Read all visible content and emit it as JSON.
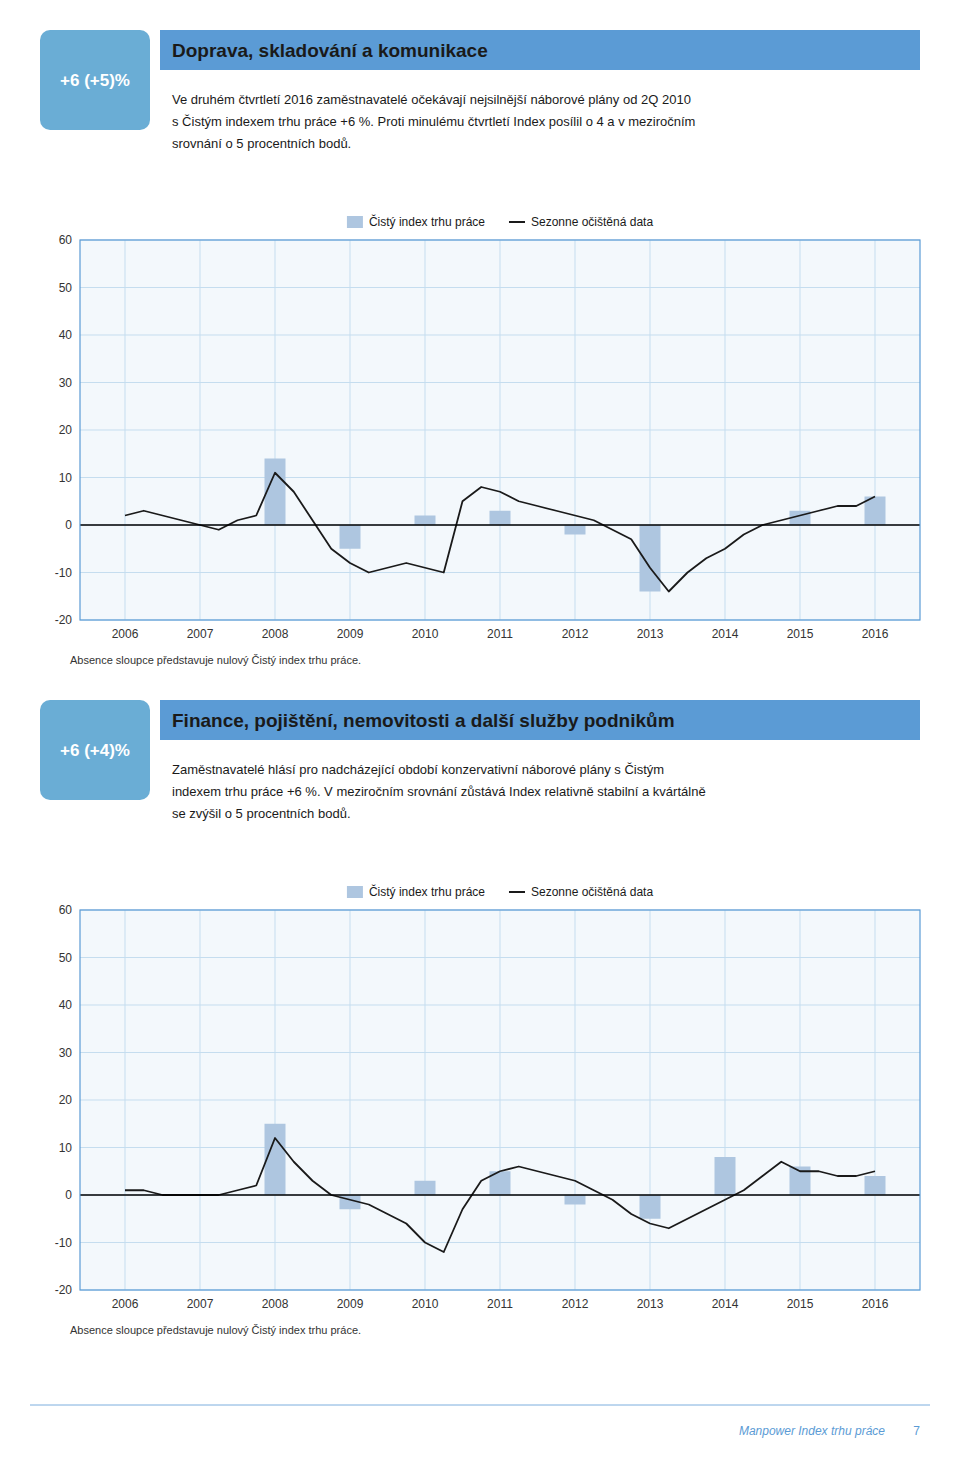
{
  "chart_data": [
    {
      "type": "bar",
      "title": "Doprava, skladování a komunikace",
      "annotations": [
        "+6 (+5)%",
        "Ve druhém čtvrtletí 2016 zaměstnavatelé očekávají nejsilnější náborové plány od 2Q 2010",
        "s Čistým indexem trhu práce +6 %. Proti minulému čtvrtletí Index posílil o 4 a v meziročním",
        "srovnání o 5 procentních bodů.",
        "Absence sloupce představuje nulový Čistý index trhu práce."
      ],
      "x": [
        2006,
        2007,
        2008,
        2009,
        2010,
        2011,
        2012,
        2013,
        2014,
        2015,
        2016
      ],
      "series": [
        {
          "name": "Čistý index trhu práce",
          "type": "bar",
          "color": "#aec6e0",
          "values": [
            null,
            null,
            14,
            -5,
            2,
            3,
            -2,
            -14,
            null,
            3,
            6
          ]
        },
        {
          "name": "Sezonne očištěná data",
          "type": "line",
          "color": "#1a1a1a",
          "x": [
            2006.0,
            2006.25,
            2006.5,
            2006.75,
            2007.0,
            2007.25,
            2007.5,
            2007.75,
            2008.0,
            2008.25,
            2008.5,
            2008.75,
            2009.0,
            2009.25,
            2009.5,
            2009.75,
            2010.0,
            2010.25,
            2010.5,
            2010.75,
            2011.0,
            2011.25,
            2011.5,
            2011.75,
            2012.0,
            2012.25,
            2012.5,
            2012.75,
            2013.0,
            2013.25,
            2013.5,
            2013.75,
            2014.0,
            2014.25,
            2014.5,
            2014.75,
            2015.0,
            2015.25,
            2015.5,
            2015.75,
            2016.0
          ],
          "values": [
            2,
            3,
            2,
            1,
            0,
            -1,
            1,
            2,
            11,
            7,
            1,
            -5,
            -8,
            -10,
            -9,
            -8,
            -9,
            -10,
            5,
            8,
            7,
            5,
            4,
            3,
            2,
            1,
            -1,
            -3,
            -9,
            -14,
            -10,
            -7,
            -5,
            -2,
            0,
            1,
            2,
            3,
            4,
            4,
            6
          ]
        }
      ],
      "xlim": [
        2005.4,
        2016.6
      ],
      "xticks": [
        2006,
        2007,
        2008,
        2009,
        2010,
        2011,
        2012,
        2013,
        2014,
        2015,
        2016
      ],
      "ylim": [
        -20,
        60
      ],
      "yticks": [
        -20,
        -10,
        0,
        10,
        20,
        30,
        40,
        50,
        60
      ],
      "grid": true,
      "legend": "top"
    },
    {
      "type": "bar",
      "title": "Finance, pojištění, nemovitosti a další služby podnikům",
      "annotations": [
        "+6 (+4)%",
        "Zaměstnavatelé hlásí pro nadcházející období konzervativní náborové plány s Čistým",
        "indexem trhu práce +6 %. V meziročním srovnání zůstává Index relativně stabilní a kvártálně",
        "se zvýšil o 5 procentních bodů.",
        "Absence sloupce představuje nulový Čistý index trhu práce."
      ],
      "x": [
        2006,
        2007,
        2008,
        2009,
        2010,
        2011,
        2012,
        2013,
        2014,
        2015,
        2016
      ],
      "series": [
        {
          "name": "Čistý index trhu práce",
          "type": "bar",
          "color": "#aec6e0",
          "values": [
            null,
            null,
            15,
            -3,
            3,
            5,
            -2,
            -5,
            8,
            6,
            4
          ]
        },
        {
          "name": "Sezonne očištěná data",
          "type": "line",
          "color": "#1a1a1a",
          "x": [
            2006.0,
            2006.25,
            2006.5,
            2006.75,
            2007.0,
            2007.25,
            2007.5,
            2007.75,
            2008.0,
            2008.25,
            2008.5,
            2008.75,
            2009.0,
            2009.25,
            2009.5,
            2009.75,
            2010.0,
            2010.25,
            2010.5,
            2010.75,
            2011.0,
            2011.25,
            2011.5,
            2011.75,
            2012.0,
            2012.25,
            2012.5,
            2012.75,
            2013.0,
            2013.25,
            2013.5,
            2013.75,
            2014.0,
            2014.25,
            2014.5,
            2014.75,
            2015.0,
            2015.25,
            2015.5,
            2015.75,
            2016.0
          ],
          "values": [
            1,
            1,
            0,
            0,
            0,
            0,
            1,
            2,
            12,
            7,
            3,
            0,
            -1,
            -2,
            -4,
            -6,
            -10,
            -12,
            -3,
            3,
            5,
            6,
            5,
            4,
            3,
            1,
            -1,
            -4,
            -6,
            -7,
            -5,
            -3,
            -1,
            1,
            4,
            7,
            5,
            5,
            4,
            4,
            5
          ]
        }
      ],
      "xlim": [
        2005.4,
        2016.6
      ],
      "xticks": [
        2006,
        2007,
        2008,
        2009,
        2010,
        2011,
        2012,
        2013,
        2014,
        2015,
        2016
      ],
      "ylim": [
        -20,
        60
      ],
      "yticks": [
        -20,
        -10,
        0,
        10,
        20,
        30,
        40,
        50,
        60
      ],
      "grid": true,
      "legend": "top"
    }
  ],
  "footer": {
    "text": "Manpower Index trhu práce",
    "page": "7"
  }
}
